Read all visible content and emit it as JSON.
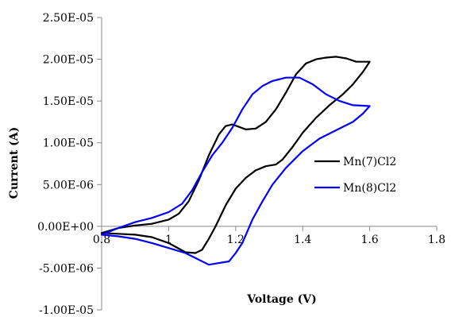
{
  "chart_data": {
    "type": "line",
    "xlabel": "Voltage (V)",
    "ylabel": "Current (A)",
    "xlim": [
      0.8,
      1.8
    ],
    "ylim": [
      -1e-05,
      2.5e-05
    ],
    "x_ticks": [
      0.8,
      1,
      1.2,
      1.4,
      1.6,
      1.8
    ],
    "x_tick_labels": [
      "0.8",
      "1",
      "1.2",
      "1.4",
      "1.6",
      "1.8"
    ],
    "y_ticks": [
      -1e-05,
      -5e-06,
      0,
      5e-06,
      1e-05,
      1.5e-05,
      2e-05,
      2.5e-05
    ],
    "y_tick_labels": [
      "-1.00E-05",
      "-5.00E-06",
      "0.00E+00",
      "5.00E-06",
      "1.00E-05",
      "1.50E-05",
      "2.00E-05",
      "2.50E-05"
    ],
    "x_axis_at_y": 0,
    "grid": false,
    "legend_position": "right",
    "series": [
      {
        "name": "Mn(7)Cl2",
        "color": "#000000",
        "points": [
          [
            0.8,
            -8e-07
          ],
          [
            0.85,
            -2e-07
          ],
          [
            0.9,
            1e-07
          ],
          [
            0.95,
            3e-07
          ],
          [
            1.0,
            8e-07
          ],
          [
            1.03,
            1.5e-06
          ],
          [
            1.06,
            3e-06
          ],
          [
            1.09,
            5.5e-06
          ],
          [
            1.12,
            8.5e-06
          ],
          [
            1.15,
            1.1e-05
          ],
          [
            1.17,
            1.2e-05
          ],
          [
            1.19,
            1.22e-05
          ],
          [
            1.21,
            1.19e-05
          ],
          [
            1.23,
            1.16e-05
          ],
          [
            1.26,
            1.17e-05
          ],
          [
            1.29,
            1.25e-05
          ],
          [
            1.32,
            1.4e-05
          ],
          [
            1.35,
            1.6e-05
          ],
          [
            1.38,
            1.82e-05
          ],
          [
            1.41,
            1.95e-05
          ],
          [
            1.44,
            2e-05
          ],
          [
            1.47,
            2.02e-05
          ],
          [
            1.5,
            2.03e-05
          ],
          [
            1.53,
            2.01e-05
          ],
          [
            1.56,
            1.97e-05
          ],
          [
            1.6,
            1.97e-05
          ],
          [
            1.6,
            1.97e-05
          ],
          [
            1.58,
            1.85e-05
          ],
          [
            1.55,
            1.7e-05
          ],
          [
            1.52,
            1.58e-05
          ],
          [
            1.48,
            1.45e-05
          ],
          [
            1.44,
            1.3e-05
          ],
          [
            1.4,
            1.12e-05
          ],
          [
            1.37,
            9.5e-06
          ],
          [
            1.34,
            8e-06
          ],
          [
            1.32,
            7.4e-06
          ],
          [
            1.29,
            7.2e-06
          ],
          [
            1.26,
            6.7e-06
          ],
          [
            1.23,
            5.8e-06
          ],
          [
            1.2,
            4.5e-06
          ],
          [
            1.17,
            2.5e-06
          ],
          [
            1.14,
            0
          ],
          [
            1.12,
            -1.5e-06
          ],
          [
            1.1,
            -2.8e-06
          ],
          [
            1.08,
            -3.2e-06
          ],
          [
            1.05,
            -3.1e-06
          ],
          [
            1.0,
            -2e-06
          ],
          [
            0.95,
            -1.3e-06
          ],
          [
            0.9,
            -1e-06
          ],
          [
            0.85,
            -9e-07
          ],
          [
            0.8,
            -8e-07
          ]
        ]
      },
      {
        "name": "Mn(8)Cl2",
        "color": "#0000ff",
        "points": [
          [
            0.8,
            -1e-06
          ],
          [
            0.85,
            -2e-07
          ],
          [
            0.9,
            5e-07
          ],
          [
            0.95,
            1e-06
          ],
          [
            1.0,
            1.7e-06
          ],
          [
            1.04,
            2.7e-06
          ],
          [
            1.07,
            4.3e-06
          ],
          [
            1.1,
            6.5e-06
          ],
          [
            1.13,
            8.5e-06
          ],
          [
            1.16,
            1e-05
          ],
          [
            1.19,
            1.18e-05
          ],
          [
            1.22,
            1.4e-05
          ],
          [
            1.25,
            1.58e-05
          ],
          [
            1.28,
            1.68e-05
          ],
          [
            1.31,
            1.74e-05
          ],
          [
            1.35,
            1.78e-05
          ],
          [
            1.39,
            1.78e-05
          ],
          [
            1.43,
            1.7e-05
          ],
          [
            1.47,
            1.58e-05
          ],
          [
            1.51,
            1.5e-05
          ],
          [
            1.55,
            1.45e-05
          ],
          [
            1.6,
            1.44e-05
          ],
          [
            1.6,
            1.44e-05
          ],
          [
            1.58,
            1.35e-05
          ],
          [
            1.55,
            1.25e-05
          ],
          [
            1.5,
            1.15e-05
          ],
          [
            1.45,
            1.05e-05
          ],
          [
            1.4,
            9e-06
          ],
          [
            1.35,
            7e-06
          ],
          [
            1.31,
            5e-06
          ],
          [
            1.28,
            3e-06
          ],
          [
            1.25,
            8e-07
          ],
          [
            1.22,
            -2e-06
          ],
          [
            1.2,
            -3.2e-06
          ],
          [
            1.18,
            -4.2e-06
          ],
          [
            1.15,
            -4.4e-06
          ],
          [
            1.12,
            -4.6e-06
          ],
          [
            1.09,
            -4e-06
          ],
          [
            1.05,
            -3.2e-06
          ],
          [
            1.0,
            -2.6e-06
          ],
          [
            0.95,
            -2e-06
          ],
          [
            0.9,
            -1.5e-06
          ],
          [
            0.85,
            -1.2e-06
          ],
          [
            0.8,
            -1e-06
          ]
        ]
      }
    ]
  }
}
